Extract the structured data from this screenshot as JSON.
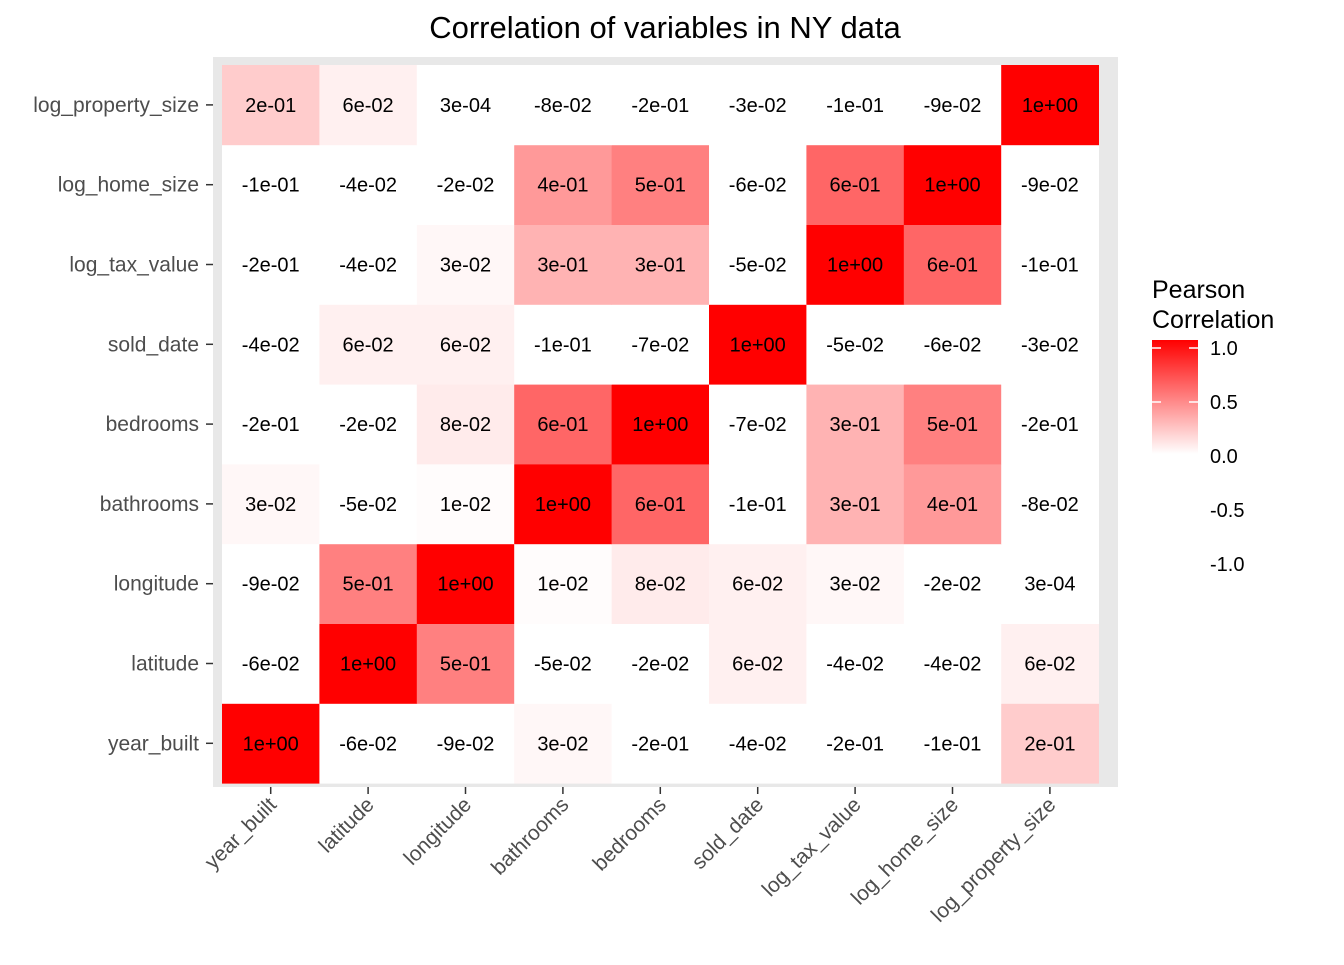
{
  "chart_data": {
    "type": "heatmap",
    "title": "Correlation of variables in NY data",
    "xlabel": "",
    "ylabel": "",
    "x_categories": [
      "year_built",
      "latitude",
      "longitude",
      "bathrooms",
      "bedrooms",
      "sold_date",
      "log_tax_value",
      "log_home_size",
      "log_property_size"
    ],
    "y_categories": [
      "year_built",
      "latitude",
      "longitude",
      "bathrooms",
      "bedrooms",
      "sold_date",
      "log_tax_value",
      "log_home_size",
      "log_property_size"
    ],
    "values": [
      [
        1.0,
        -0.06,
        -0.09,
        0.03,
        -0.2,
        -0.04,
        -0.2,
        -0.1,
        0.2
      ],
      [
        -0.06,
        1.0,
        0.5,
        -0.05,
        -0.02,
        0.06,
        -0.04,
        -0.04,
        0.06
      ],
      [
        -0.09,
        0.5,
        1.0,
        0.01,
        0.08,
        0.06,
        0.03,
        -0.02,
        0.0003
      ],
      [
        0.03,
        -0.05,
        0.01,
        1.0,
        0.6,
        -0.1,
        0.3,
        0.4,
        -0.08
      ],
      [
        -0.2,
        -0.02,
        0.08,
        0.6,
        1.0,
        -0.07,
        0.3,
        0.5,
        -0.2
      ],
      [
        -0.04,
        0.06,
        0.06,
        -0.1,
        -0.07,
        1.0,
        -0.05,
        -0.06,
        -0.03
      ],
      [
        -0.2,
        -0.04,
        0.03,
        0.3,
        0.3,
        -0.05,
        1.0,
        0.6,
        -0.1
      ],
      [
        -0.1,
        -0.04,
        -0.02,
        0.4,
        0.5,
        -0.06,
        0.6,
        1.0,
        -0.09
      ],
      [
        0.2,
        0.06,
        0.0003,
        -0.08,
        -0.2,
        -0.03,
        -0.1,
        -0.09,
        1.0
      ]
    ],
    "labels": [
      [
        "1e+00",
        "-6e-02",
        "-9e-02",
        "3e-02",
        "-2e-01",
        "-4e-02",
        "-2e-01",
        "-1e-01",
        "2e-01"
      ],
      [
        "-6e-02",
        "1e+00",
        "5e-01",
        "-5e-02",
        "-2e-02",
        "6e-02",
        "-4e-02",
        "-4e-02",
        "6e-02"
      ],
      [
        "-9e-02",
        "5e-01",
        "1e+00",
        "1e-02",
        "8e-02",
        "6e-02",
        "3e-02",
        "-2e-02",
        "3e-04"
      ],
      [
        "3e-02",
        "-5e-02",
        "1e-02",
        "1e+00",
        "6e-01",
        "-1e-01",
        "3e-01",
        "4e-01",
        "-8e-02"
      ],
      [
        "-2e-01",
        "-2e-02",
        "8e-02",
        "6e-01",
        "1e+00",
        "-7e-02",
        "3e-01",
        "5e-01",
        "-2e-01"
      ],
      [
        "-4e-02",
        "6e-02",
        "6e-02",
        "-1e-01",
        "-7e-02",
        "1e+00",
        "-5e-02",
        "-6e-02",
        "-3e-02"
      ],
      [
        "-2e-01",
        "-4e-02",
        "3e-02",
        "3e-01",
        "3e-01",
        "-5e-02",
        "1e+00",
        "6e-01",
        "-1e-01"
      ],
      [
        "-1e-01",
        "-4e-02",
        "-2e-02",
        "4e-01",
        "5e-01",
        "-6e-02",
        "6e-01",
        "1e+00",
        "-9e-02"
      ],
      [
        "2e-01",
        "6e-02",
        "3e-04",
        "-8e-02",
        "-2e-01",
        "-3e-02",
        "-1e-01",
        "-9e-02",
        "1e+00"
      ]
    ],
    "legend": {
      "title_line1": "Pearson",
      "title_line2": "Correlation",
      "position": "right",
      "ticks": [
        1.0,
        0.5,
        0.0,
        -0.5,
        -1.0
      ],
      "tick_labels": [
        "1.0",
        "0.5",
        "0.0",
        "-0.5",
        "-1.0"
      ],
      "limits": [
        -1,
        1
      ]
    },
    "colors": {
      "high": "#ff0000",
      "mid": "#ffffff",
      "low": "#ffffff",
      "panel_background": "#e8e8e8",
      "axis_text": "#4d4d4d"
    },
    "grid": false
  }
}
